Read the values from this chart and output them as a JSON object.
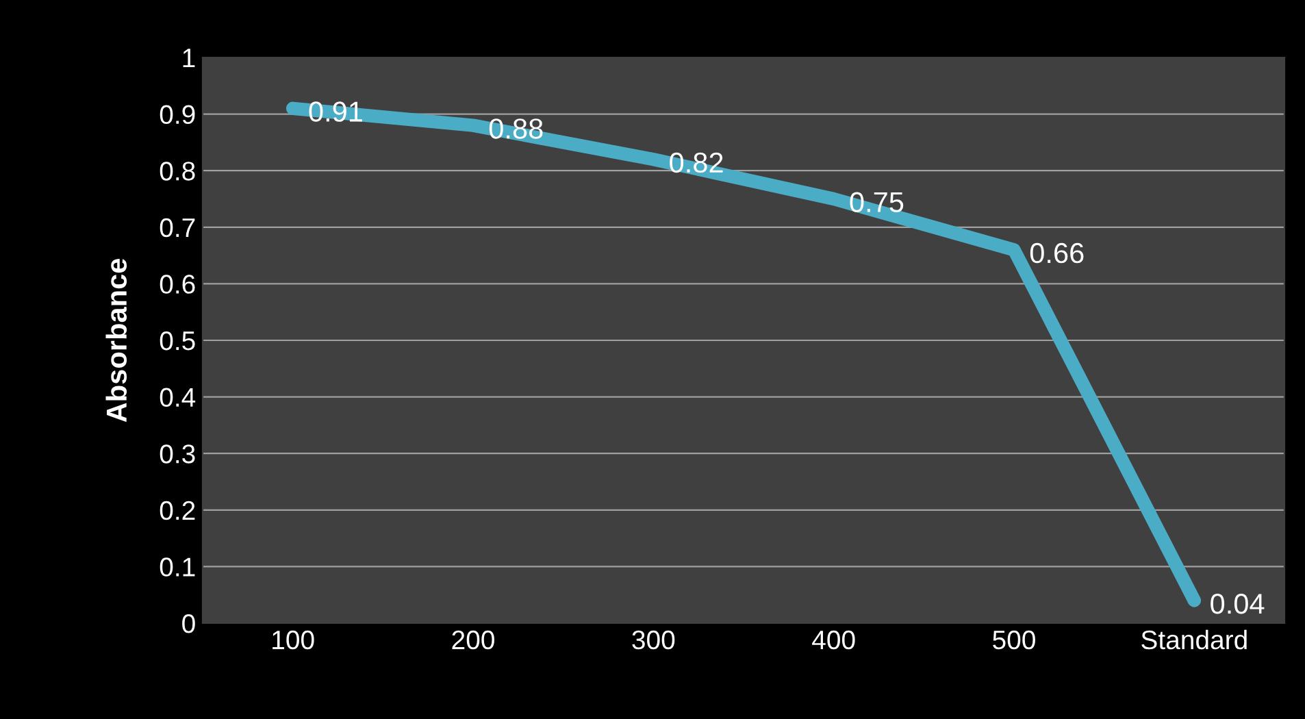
{
  "chart_data": {
    "type": "line",
    "ylabel": "Absorbance",
    "categories": [
      "100",
      "200",
      "300",
      "400",
      "500",
      "Standard"
    ],
    "series": [
      {
        "color": "#4bacc6",
        "values": [
          0.91,
          0.88,
          0.82,
          0.75,
          0.66,
          0.04
        ]
      }
    ],
    "ylim": [
      0,
      1
    ],
    "yticks": [
      0,
      0.1,
      0.2,
      0.3,
      0.4,
      0.5,
      0.6,
      0.7,
      0.8,
      0.9,
      1
    ],
    "grid": "y",
    "data_labels": true,
    "marker": "none",
    "line_style": "solid"
  }
}
